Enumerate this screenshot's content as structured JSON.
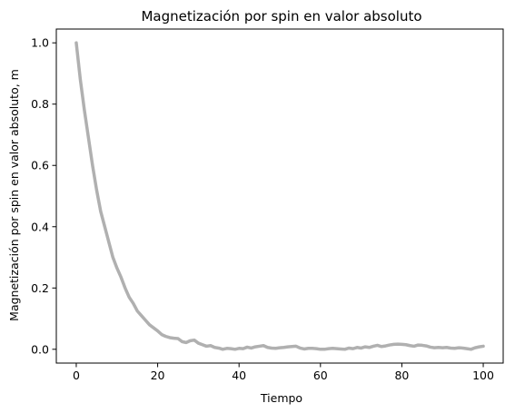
{
  "chart_data": {
    "type": "line",
    "title": "Magnetización por spin en valor absoluto",
    "xlabel": "Tiempo",
    "ylabel": "Magnetización por spin en valor absoluto, m",
    "xlim": [
      -4.9,
      104.9
    ],
    "ylim": [
      -0.045,
      1.045
    ],
    "xticks": [
      0,
      20,
      40,
      60,
      80,
      100
    ],
    "xtick_labels": [
      "0",
      "20",
      "40",
      "60",
      "80",
      "100"
    ],
    "yticks": [
      0.0,
      0.2,
      0.4,
      0.6,
      0.8,
      1.0
    ],
    "ytick_labels": [
      "0.0",
      "0.2",
      "0.4",
      "0.6",
      "0.8",
      "1.0"
    ],
    "grid": false,
    "line_color": "#b0b0b0",
    "series": [
      {
        "x": [
          0,
          1,
          2,
          3,
          4,
          5,
          6,
          7,
          8,
          9,
          10,
          11,
          12,
          13,
          14,
          15,
          16,
          17,
          18,
          19,
          20,
          21,
          22,
          23,
          24,
          25,
          26,
          27,
          28,
          29,
          30,
          31,
          32,
          33,
          34,
          35,
          36,
          37,
          38,
          39,
          40,
          41,
          42,
          43,
          44,
          45,
          46,
          47,
          48,
          49,
          50,
          51,
          52,
          53,
          54,
          55,
          56,
          57,
          58,
          59,
          60,
          61,
          62,
          63,
          64,
          65,
          66,
          67,
          68,
          69,
          70,
          71,
          72,
          73,
          74,
          75,
          76,
          77,
          78,
          79,
          80,
          81,
          82,
          83,
          84,
          85,
          86,
          87,
          88,
          89,
          90,
          91,
          92,
          93,
          94,
          95,
          96,
          97,
          98,
          99,
          100
        ],
        "values": [
          1.0,
          0.88,
          0.78,
          0.69,
          0.6,
          0.52,
          0.45,
          0.4,
          0.35,
          0.3,
          0.265,
          0.235,
          0.2,
          0.17,
          0.15,
          0.125,
          0.11,
          0.095,
          0.08,
          0.07,
          0.06,
          0.048,
          0.042,
          0.038,
          0.036,
          0.035,
          0.025,
          0.022,
          0.028,
          0.03,
          0.02,
          0.015,
          0.01,
          0.012,
          0.006,
          0.004,
          0.0,
          0.003,
          0.002,
          0.0,
          0.003,
          0.002,
          0.007,
          0.004,
          0.008,
          0.01,
          0.012,
          0.006,
          0.004,
          0.003,
          0.005,
          0.006,
          0.008,
          0.009,
          0.01,
          0.004,
          0.001,
          0.003,
          0.003,
          0.002,
          0.0,
          0.0,
          0.002,
          0.003,
          0.002,
          0.001,
          0.0,
          0.004,
          0.002,
          0.006,
          0.004,
          0.008,
          0.006,
          0.01,
          0.013,
          0.009,
          0.011,
          0.014,
          0.016,
          0.017,
          0.016,
          0.015,
          0.012,
          0.01,
          0.014,
          0.013,
          0.011,
          0.007,
          0.005,
          0.006,
          0.005,
          0.006,
          0.004,
          0.003,
          0.005,
          0.004,
          0.002,
          0.0,
          0.005,
          0.008,
          0.01
        ]
      }
    ]
  }
}
